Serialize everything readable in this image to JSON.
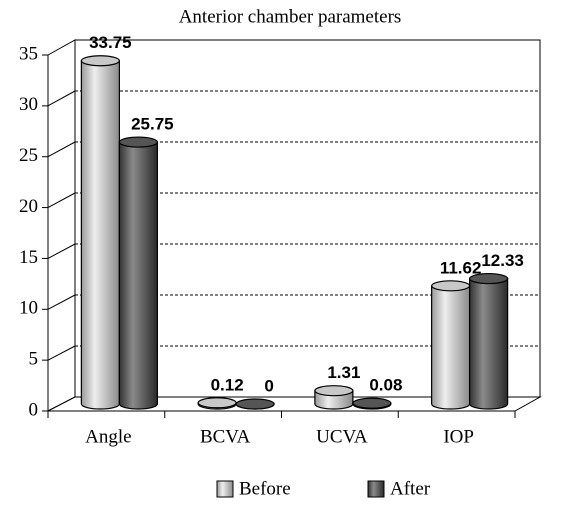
{
  "chart_data": {
    "type": "bar3d",
    "title": "Anterior chamber parameters",
    "categories": [
      "Angle",
      "BCVA",
      "UCVA",
      "IOP"
    ],
    "series": [
      {
        "name": "Before",
        "color": "#c8c8c8",
        "values": [
          33.75,
          0.12,
          1.31,
          11.62
        ]
      },
      {
        "name": "After",
        "color": "#555555",
        "values": [
          25.75,
          0,
          0.08,
          12.33
        ]
      }
    ],
    "ylim": [
      0,
      35
    ],
    "yticks": [
      0,
      5,
      10,
      15,
      20,
      25,
      30,
      35
    ],
    "grid": true,
    "legend": "bottom"
  }
}
